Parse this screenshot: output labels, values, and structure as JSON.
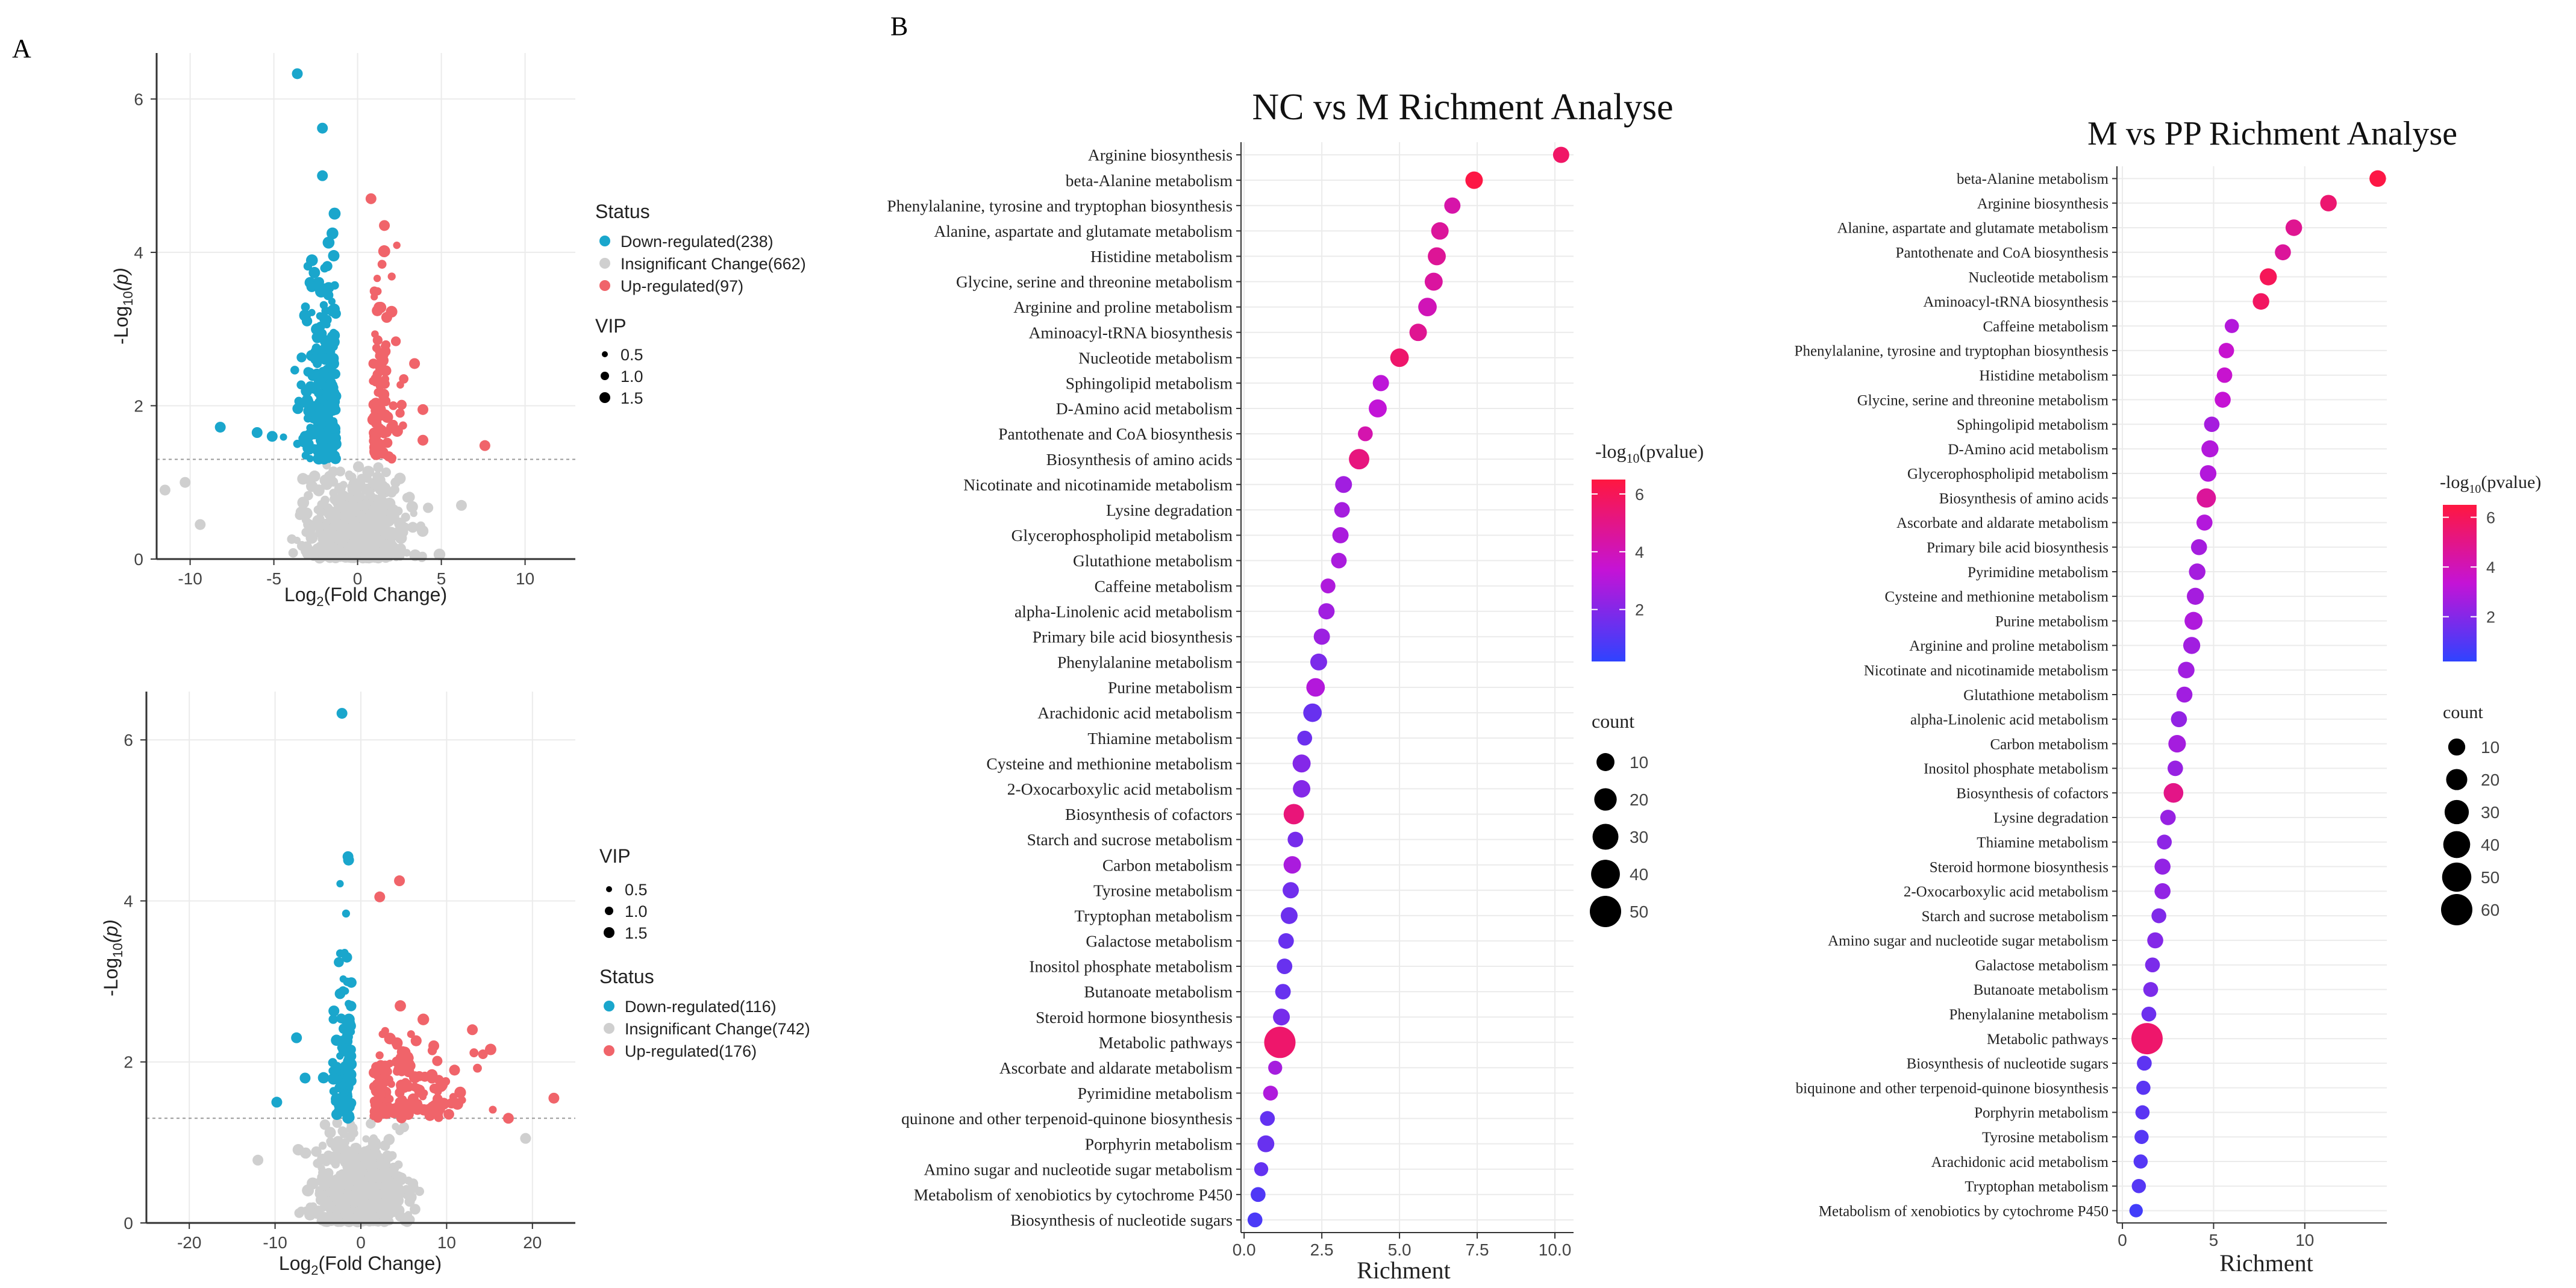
{
  "panel_labels": {
    "a": "A",
    "b": "B"
  },
  "colors": {
    "down": "#1aa6cc",
    "insignificant": "#cfcfcf",
    "up": "#f0646a",
    "grid": "#ebebeb",
    "threshold": "#9a9a9a",
    "grad_low": "#2f43ff",
    "grad_mid": "#c413d6",
    "grad_high": "#ff1740",
    "dot": "#000000"
  },
  "volcano_labels": {
    "xlabel_main": "Log",
    "xlabel_sub": "2",
    "xlabel_tail": "(Fold Change)",
    "ylabel_main": "-Log",
    "ylabel_sub": "10",
    "ylabel_tail": "(p)"
  },
  "bubble_labels": {
    "xlabel": "Richment",
    "color_title_pre": "-log",
    "color_title_sub": "10",
    "color_title_tail": "(pvalue)",
    "size_title": "count"
  },
  "chart_data": [
    {
      "id": "volcano1",
      "type": "scatter",
      "title": "",
      "xlabel": "Log2(Fold Change)",
      "ylabel": "-Log10(p)",
      "xlim": [
        -12,
        13
      ],
      "ylim": [
        0,
        6.6
      ],
      "xticks": [
        -10,
        -5,
        0,
        5,
        10
      ],
      "yticks": [
        0,
        2,
        4,
        6
      ],
      "threshold_y": 1.3,
      "legend_status_title": "Status",
      "legend_status": [
        {
          "key": "down",
          "label": "Down-regulated(238)",
          "count": 238
        },
        {
          "key": "insignificant",
          "label": "Insignificant Change(662)",
          "count": 662
        },
        {
          "key": "up",
          "label": "Up-regulated(97)",
          "count": 97
        }
      ],
      "legend_vip_title": "VIP",
      "legend_vip": [
        "0.5",
        "1.0",
        "1.5"
      ],
      "highlight_points": [
        {
          "x": -3.6,
          "y": 6.33,
          "s": "down"
        },
        {
          "x": -2.1,
          "y": 5.62,
          "s": "down"
        },
        {
          "x": -2.1,
          "y": 5.0,
          "s": "down"
        },
        {
          "x": 0.8,
          "y": 4.7,
          "s": "up"
        },
        {
          "x": 1.6,
          "y": 4.35,
          "s": "up"
        },
        {
          "x": -8.2,
          "y": 1.72,
          "s": "down"
        },
        {
          "x": -6.0,
          "y": 1.65,
          "s": "down"
        },
        {
          "x": -5.1,
          "y": 1.6,
          "s": "down"
        },
        {
          "x": 7.6,
          "y": 1.48,
          "s": "up"
        },
        {
          "x": 3.9,
          "y": 1.55,
          "s": "up"
        },
        {
          "x": 3.9,
          "y": 1.95,
          "s": "up"
        },
        {
          "x": 3.4,
          "y": 2.55,
          "s": "up"
        },
        {
          "x": -10.3,
          "y": 1.0,
          "s": "insignificant"
        },
        {
          "x": -9.4,
          "y": 0.45,
          "s": "insignificant"
        },
        {
          "x": -11.5,
          "y": 0.9,
          "s": "insignificant"
        },
        {
          "x": 6.2,
          "y": 0.7,
          "s": "insignificant"
        }
      ]
    },
    {
      "id": "volcano2",
      "type": "scatter",
      "title": "",
      "xlabel": "Log2(Fold Change)",
      "ylabel": "-Log10(p)",
      "xlim": [
        -25,
        25
      ],
      "ylim": [
        0,
        6.6
      ],
      "xticks": [
        -20,
        -10,
        0,
        10,
        20
      ],
      "yticks": [
        0,
        2,
        4,
        6
      ],
      "threshold_y": 1.3,
      "legend_status_title": "Status",
      "legend_status": [
        {
          "key": "down",
          "label": "Down-regulated(116)",
          "count": 116
        },
        {
          "key": "insignificant",
          "label": "Insignificant Change(742)",
          "count": 742
        },
        {
          "key": "up",
          "label": "Up-regulated(176)",
          "count": 176
        }
      ],
      "legend_vip_title": "VIP",
      "legend_vip": [
        "0.5",
        "1.0",
        "1.5"
      ],
      "highlight_points": [
        {
          "x": -2.2,
          "y": 6.33,
          "s": "down"
        },
        {
          "x": -1.5,
          "y": 4.55,
          "s": "down"
        },
        {
          "x": 4.5,
          "y": 4.25,
          "s": "up"
        },
        {
          "x": 2.2,
          "y": 4.05,
          "s": "up"
        },
        {
          "x": 22.5,
          "y": 1.55,
          "s": "up"
        },
        {
          "x": 17.2,
          "y": 1.3,
          "s": "up"
        },
        {
          "x": 13.0,
          "y": 2.4,
          "s": "up"
        },
        {
          "x": 8.5,
          "y": 2.2,
          "s": "up"
        },
        {
          "x": -7.5,
          "y": 2.3,
          "s": "down"
        },
        {
          "x": -9.8,
          "y": 1.5,
          "s": "down"
        },
        {
          "x": -6.5,
          "y": 1.8,
          "s": "down"
        },
        {
          "x": 19.2,
          "y": 1.05,
          "s": "insignificant"
        },
        {
          "x": -12.0,
          "y": 0.78,
          "s": "insignificant"
        }
      ]
    },
    {
      "id": "bubble1",
      "type": "scatter",
      "title": "NC vs M Richment Analyse",
      "xlabel": "Richment",
      "xlim": [
        -0.1,
        10.6
      ],
      "xticks": [
        0.0,
        2.5,
        5.0,
        7.5,
        10.0
      ],
      "xticklabels": [
        "0.0",
        "2.5",
        "5.0",
        "7.5",
        "10.0"
      ],
      "color_ticks": [
        2,
        4,
        6
      ],
      "color_range": [
        0.2,
        6.5
      ],
      "size_legend": [
        10,
        20,
        30,
        40,
        50
      ],
      "size_max": 50,
      "pathways": [
        "Arginine biosynthesis",
        "beta-Alanine metabolism",
        "Phenylalanine, tyrosine and tryptophan biosynthesis",
        "Alanine, aspartate and glutamate metabolism",
        "Histidine metabolism",
        "Glycine, serine and threonine metabolism",
        "Arginine and proline metabolism",
        "Aminoacyl-tRNA biosynthesis",
        "Nucleotide metabolism",
        "Sphingolipid metabolism",
        "D-Amino acid metabolism",
        "Pantothenate and CoA biosynthesis",
        "Biosynthesis of amino acids",
        "Nicotinate and nicotinamide metabolism",
        "Lysine degradation",
        "Glycerophospholipid metabolism",
        "Glutathione metabolism",
        "Caffeine metabolism",
        "alpha-Linolenic acid metabolism",
        "Primary bile acid biosynthesis",
        "Phenylalanine metabolism",
        "Purine metabolism",
        "Arachidonic acid metabolism",
        "Thiamine metabolism",
        "Cysteine and methionine metabolism",
        "2-Oxocarboxylic acid metabolism",
        "Biosynthesis of cofactors",
        "Starch and sucrose metabolism",
        "Carbon metabolism",
        "Tyrosine metabolism",
        "Tryptophan metabolism",
        "Galactose metabolism",
        "Inositol phosphate metabolism",
        "Butanoate metabolism",
        "Steroid hormone biosynthesis",
        "Metabolic pathways",
        "Ascorbate and aldarate metabolism",
        "Pyrimidine metabolism",
        "quinone and other terpenoid-quinone biosynthesis",
        "Porphyrin metabolism",
        "Amino sugar and nucleotide sugar metabolism",
        "Metabolism of xenobiotics by cytochrome P450",
        "Biosynthesis of nucleotide sugars"
      ],
      "richment": [
        10.2,
        7.4,
        6.7,
        6.3,
        6.2,
        6.1,
        5.9,
        5.6,
        5.0,
        4.4,
        4.3,
        3.9,
        3.7,
        3.2,
        3.15,
        3.1,
        3.05,
        2.7,
        2.65,
        2.5,
        2.4,
        2.3,
        2.2,
        1.95,
        1.85,
        1.85,
        1.6,
        1.65,
        1.55,
        1.5,
        1.45,
        1.35,
        1.3,
        1.25,
        1.2,
        1.15,
        1.0,
        0.85,
        0.75,
        0.7,
        0.55,
        0.45,
        0.35
      ],
      "neglog10p": [
        5.7,
        6.4,
        4.3,
        4.6,
        4.7,
        4.5,
        4.0,
        4.8,
        5.6,
        3.2,
        3.3,
        4.2,
        5.2,
        2.6,
        2.7,
        2.8,
        2.8,
        2.9,
        2.6,
        2.5,
        1.8,
        3.0,
        1.4,
        1.5,
        2.0,
        2.0,
        5.3,
        1.7,
        2.8,
        1.6,
        1.5,
        1.4,
        1.4,
        1.4,
        1.7,
        5.6,
        2.7,
        2.9,
        1.3,
        1.4,
        1.3,
        0.9,
        0.8
      ],
      "count": [
        7,
        9,
        7,
        9,
        10,
        10,
        11,
        9,
        11,
        7,
        10,
        5,
        15,
        8,
        6,
        7,
        6,
        5,
        7,
        7,
        8,
        11,
        11,
        5,
        10,
        9,
        15,
        6,
        9,
        7,
        8,
        6,
        6,
        6,
        8,
        50,
        4,
        5,
        5,
        8,
        4,
        5,
        5
      ]
    },
    {
      "id": "bubble2",
      "type": "scatter",
      "title": "M vs PP Richment Analyse",
      "xlabel": "Richment",
      "xlim": [
        -0.3,
        14.5
      ],
      "xticks": [
        0,
        5,
        10
      ],
      "xticklabels": [
        "0",
        "5",
        "10"
      ],
      "color_ticks": [
        2,
        4,
        6
      ],
      "color_range": [
        0.2,
        6.5
      ],
      "size_legend": [
        10,
        20,
        30,
        40,
        50,
        60
      ],
      "size_max": 60,
      "pathways": [
        "beta-Alanine metabolism",
        "Arginine biosynthesis",
        "Alanine, aspartate and glutamate metabolism",
        "Pantothenate and CoA biosynthesis",
        "Nucleotide metabolism",
        "Aminoacyl-tRNA biosynthesis",
        "Caffeine metabolism",
        "Phenylalanine, tyrosine and tryptophan biosynthesis",
        "Histidine metabolism",
        "Glycine, serine and threonine metabolism",
        "Sphingolipid metabolism",
        "D-Amino acid metabolism",
        "Glycerophospholipid metabolism",
        "Biosynthesis of amino acids",
        "Ascorbate and aldarate metabolism",
        "Primary bile acid biosynthesis",
        "Pyrimidine metabolism",
        "Cysteine and methionine metabolism",
        "Purine metabolism",
        "Arginine and proline metabolism",
        "Nicotinate and nicotinamide metabolism",
        "Glutathione metabolism",
        "alpha-Linolenic acid metabolism",
        "Carbon metabolism",
        "Inositol phosphate metabolism",
        "Biosynthesis of cofactors",
        "Lysine degradation",
        "Thiamine metabolism",
        "Steroid hormone biosynthesis",
        "2-Oxocarboxylic acid metabolism",
        "Starch and sucrose metabolism",
        "Amino sugar and nucleotide sugar metabolism",
        "Galactose metabolism",
        "Butanoate metabolism",
        "Phenylalanine metabolism",
        "Metabolic pathways",
        "Biosynthesis of nucleotide sugars",
        "biquinone and other terpenoid-quinone biosynthesis",
        "Porphyrin metabolism",
        "Tyrosine metabolism",
        "Arachidonic acid metabolism",
        "Tryptophan metabolism",
        "Metabolism of xenobiotics by cytochrome P450"
      ],
      "richment": [
        14.0,
        11.3,
        9.4,
        8.8,
        8.0,
        7.6,
        6.0,
        5.7,
        5.6,
        5.5,
        4.9,
        4.8,
        4.7,
        4.6,
        4.5,
        4.2,
        4.1,
        4.0,
        3.9,
        3.8,
        3.5,
        3.4,
        3.1,
        3.0,
        2.9,
        2.8,
        2.5,
        2.3,
        2.2,
        2.2,
        2.0,
        1.8,
        1.65,
        1.55,
        1.45,
        1.35,
        1.2,
        1.15,
        1.1,
        1.05,
        1.0,
        0.9,
        0.75
      ],
      "neglog10p": [
        6.4,
        5.5,
        4.8,
        4.6,
        6.0,
        5.8,
        3.0,
        3.5,
        3.5,
        3.4,
        2.7,
        3.0,
        3.0,
        4.6,
        3.0,
        2.7,
        2.7,
        2.7,
        2.9,
        2.6,
        2.6,
        2.6,
        2.3,
        2.7,
        2.4,
        5.0,
        2.4,
        2.2,
        2.3,
        2.3,
        1.9,
        2.0,
        1.8,
        1.8,
        1.5,
        5.6,
        1.2,
        1.1,
        1.1,
        1.0,
        1.0,
        1.0,
        0.6
      ],
      "count": [
        9,
        9,
        9,
        8,
        10,
        9,
        5,
        7,
        7,
        8,
        7,
        10,
        9,
        15,
        8,
        8,
        9,
        10,
        12,
        10,
        9,
        8,
        8,
        11,
        7,
        16,
        7,
        6,
        8,
        8,
        6,
        8,
        6,
        6,
        6,
        60,
        6,
        5,
        5,
        5,
        5,
        5,
        4
      ]
    }
  ]
}
